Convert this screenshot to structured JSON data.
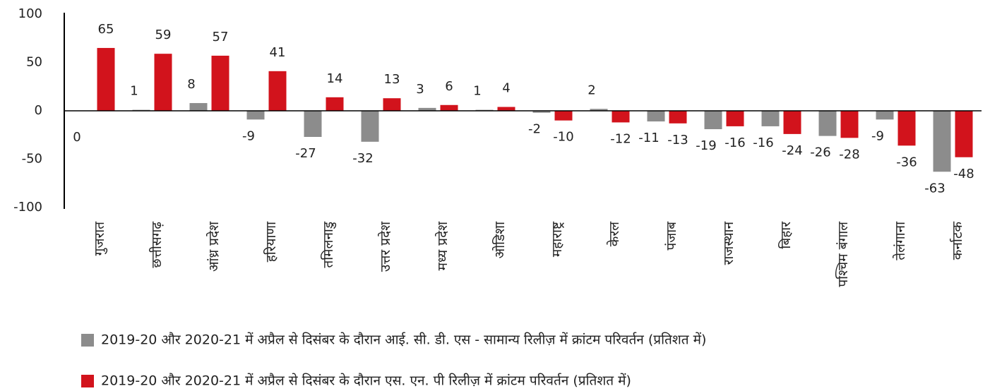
{
  "chart_data": {
    "type": "bar",
    "categories": [
      "गुजरात",
      "छत्तीसगढ़",
      "आंध्र प्रदेश",
      "हरियाणा",
      "तमिलनाडु",
      "उत्तर प्रदेश",
      "मध्य प्रदेश",
      "ओडिशा",
      "महाराष्ट्र",
      "केरल",
      "पंजाब",
      "राजस्थान",
      "बिहार",
      "पश्चिम बंगाल",
      "तेलंगाना",
      "कर्नाटक"
    ],
    "series": [
      {
        "name": "2019-20 और 2020-21 में अप्रैल से दिसंबर के दौरान आई. सी. डी. एस - सामान्य रिलीज़ में क्रांटम परिवर्तन (प्रतिशत में)",
        "color": "#8c8c8c",
        "values": [
          0,
          1,
          8,
          -9,
          -27,
          -32,
          3,
          1,
          -2,
          2,
          -11,
          -19,
          -16,
          -26,
          -9,
          -63
        ]
      },
      {
        "name": "2019-20 और 2020-21 में अप्रैल से दिसंबर के दौरान एस. एन. पी रिलीज़ में क्रांटम परिवर्तन (प्रतिशत में)",
        "color": "#d2131c",
        "values": [
          65,
          59,
          57,
          41,
          14,
          13,
          6,
          4,
          -10,
          -12,
          -13,
          -16,
          -24,
          -28,
          -36,
          -48
        ]
      }
    ],
    "ylim": [
      -100,
      100
    ],
    "yticks": [
      -100,
      -50,
      0,
      50,
      100
    ],
    "grid": false,
    "legend": "bottom"
  }
}
